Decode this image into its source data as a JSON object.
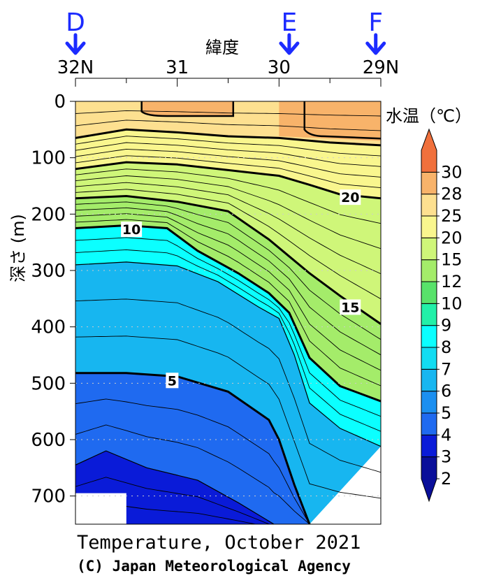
{
  "chart_data": {
    "type": "heatmap",
    "subtype": "vertical temperature section (filled contours)",
    "xlabel": "緯度",
    "ylabel": "深さ (m)",
    "colorbar_title": "水温（℃）",
    "footer_title": "Temperature, October 2021",
    "footer_credit": "(C) Japan Meteorological Agency",
    "x_ticks": [
      {
        "value": 32,
        "label": "32N"
      },
      {
        "value": 31,
        "label": "31"
      },
      {
        "value": 30,
        "label": "30"
      },
      {
        "value": 29,
        "label": "29N"
      }
    ],
    "xlim": [
      32,
      29
    ],
    "x_minor_step": 0.5,
    "y_ticks": [
      0,
      100,
      200,
      300,
      400,
      500,
      600,
      700
    ],
    "ylim": [
      0,
      750
    ],
    "y_reversed": true,
    "stations": [
      {
        "name": "D",
        "lat": 32.0
      },
      {
        "name": "E",
        "lat": 29.9
      },
      {
        "name": "F",
        "lat": 29.05
      }
    ],
    "colorbar_levels": [
      2,
      3,
      4,
      5,
      6,
      7,
      8,
      9,
      10,
      12,
      15,
      20,
      25,
      28,
      30
    ],
    "colorbar_colors": [
      "#0a0f9a",
      "#0a1bd8",
      "#1f6af0",
      "#1b8ff0",
      "#17b6f0",
      "#12dcf2",
      "#0bffff",
      "#22f0a8",
      "#58e26a",
      "#a4ec6a",
      "#cff679",
      "#f9f68e",
      "#fde090",
      "#f8b36a",
      "#f0703c"
    ],
    "contour_labels": [
      {
        "value": 20,
        "lat": 29.3,
        "depth": 170
      },
      {
        "value": 15,
        "lat": 29.3,
        "depth": 365
      },
      {
        "value": 10,
        "lat": 31.45,
        "depth": 227
      },
      {
        "value": 5,
        "lat": 31.05,
        "depth": 495
      }
    ],
    "isotherms": [
      {
        "value": 25,
        "points": [
          [
            32.0,
            65
          ],
          [
            31.5,
            50
          ],
          [
            31.0,
            55
          ],
          [
            30.5,
            62
          ],
          [
            30.0,
            65
          ],
          [
            29.5,
            73
          ],
          [
            29.0,
            78
          ]
        ]
      },
      {
        "value": 20,
        "points": [
          [
            32.0,
            120
          ],
          [
            31.5,
            108
          ],
          [
            31.0,
            112
          ],
          [
            30.5,
            122
          ],
          [
            30.0,
            132
          ],
          [
            29.7,
            148
          ],
          [
            29.4,
            165
          ],
          [
            29.0,
            172
          ]
        ]
      },
      {
        "value": 15,
        "points": [
          [
            32.0,
            172
          ],
          [
            31.5,
            168
          ],
          [
            31.0,
            178
          ],
          [
            30.5,
            195
          ],
          [
            30.1,
            245
          ],
          [
            29.9,
            275
          ],
          [
            29.7,
            305
          ],
          [
            29.4,
            345
          ],
          [
            29.0,
            395
          ]
        ]
      },
      {
        "value": 10,
        "points": [
          [
            32.0,
            225
          ],
          [
            31.5,
            220
          ],
          [
            31.1,
            225
          ],
          [
            30.8,
            265
          ],
          [
            30.4,
            305
          ],
          [
            30.1,
            340
          ],
          [
            29.9,
            375
          ],
          [
            29.7,
            455
          ],
          [
            29.4,
            505
          ],
          [
            29.0,
            532
          ]
        ]
      },
      {
        "value": 7,
        "points": [
          [
            32.0,
            290
          ],
          [
            31.5,
            285
          ],
          [
            31.0,
            292
          ],
          [
            30.6,
            320
          ],
          [
            30.2,
            365
          ],
          [
            30.0,
            385
          ],
          [
            29.85,
            450
          ],
          [
            29.7,
            535
          ],
          [
            29.4,
            580
          ],
          [
            29.0,
            612
          ]
        ]
      },
      {
        "value": 5,
        "points": [
          [
            32.0,
            482
          ],
          [
            31.5,
            482
          ],
          [
            31.0,
            488
          ],
          [
            30.5,
            515
          ],
          [
            30.1,
            565
          ],
          [
            30.0,
            600
          ],
          [
            29.85,
            680
          ],
          [
            29.7,
            750
          ]
        ]
      },
      {
        "value": 4,
        "points": [
          [
            32.0,
            645
          ],
          [
            31.7,
            620
          ],
          [
            31.3,
            650
          ],
          [
            30.8,
            672
          ],
          [
            30.4,
            712
          ],
          [
            30.05,
            750
          ]
        ]
      }
    ],
    "missing_data_region": {
      "lat_range": [
        32.0,
        31.5
      ],
      "depth_range": [
        695,
        750
      ]
    }
  }
}
